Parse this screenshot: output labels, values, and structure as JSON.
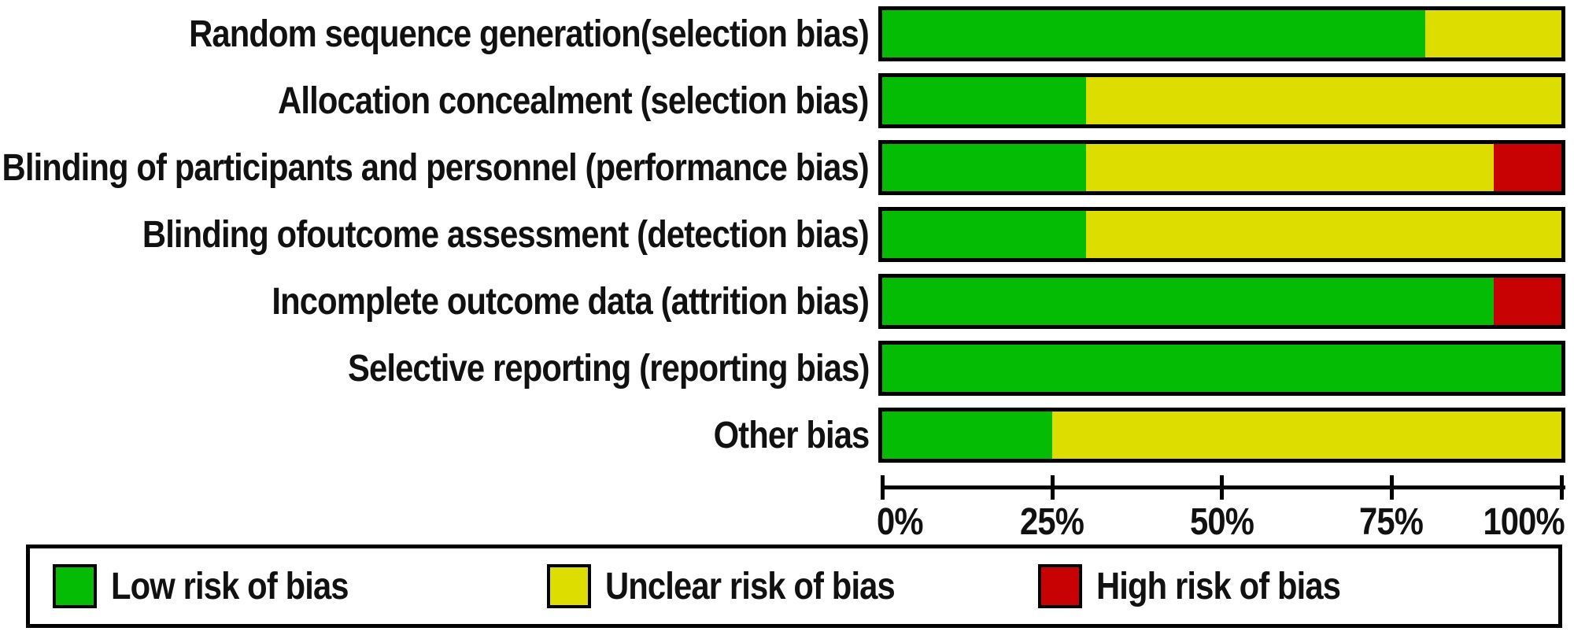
{
  "chart_data": {
    "type": "bar",
    "stacked": true,
    "orientation": "horizontal",
    "unit": "percent",
    "categories": [
      "Random sequence generation(selection bias)",
      "Allocation concealment (selection bias)",
      "Blinding of participants and personnel (performance bias)",
      "Blinding ofoutcome assessment (detection bias)",
      "Incomplete outcome data (attrition bias)",
      "Selective reporting (reporting bias)",
      "Other bias"
    ],
    "series": [
      {
        "name": "Low risk of bias",
        "color": "#03bc03",
        "values": [
          80,
          30,
          30,
          30,
          90,
          100,
          25
        ]
      },
      {
        "name": "Unclear risk of bias",
        "color": "#dedd00",
        "values": [
          20,
          70,
          60,
          70,
          0,
          0,
          75
        ]
      },
      {
        "name": "High risk of bias",
        "color": "#c80202",
        "values": [
          0,
          0,
          10,
          0,
          10,
          0,
          0
        ]
      }
    ],
    "x_axis": {
      "ticks": [
        "0%",
        "25%",
        "50%",
        "75%",
        "100%"
      ],
      "range": [
        0,
        100
      ],
      "grid": false
    },
    "legend": {
      "position": "bottom",
      "items": [
        "Low risk of bias",
        "Unclear risk of bias",
        "High risk of bias"
      ]
    }
  }
}
